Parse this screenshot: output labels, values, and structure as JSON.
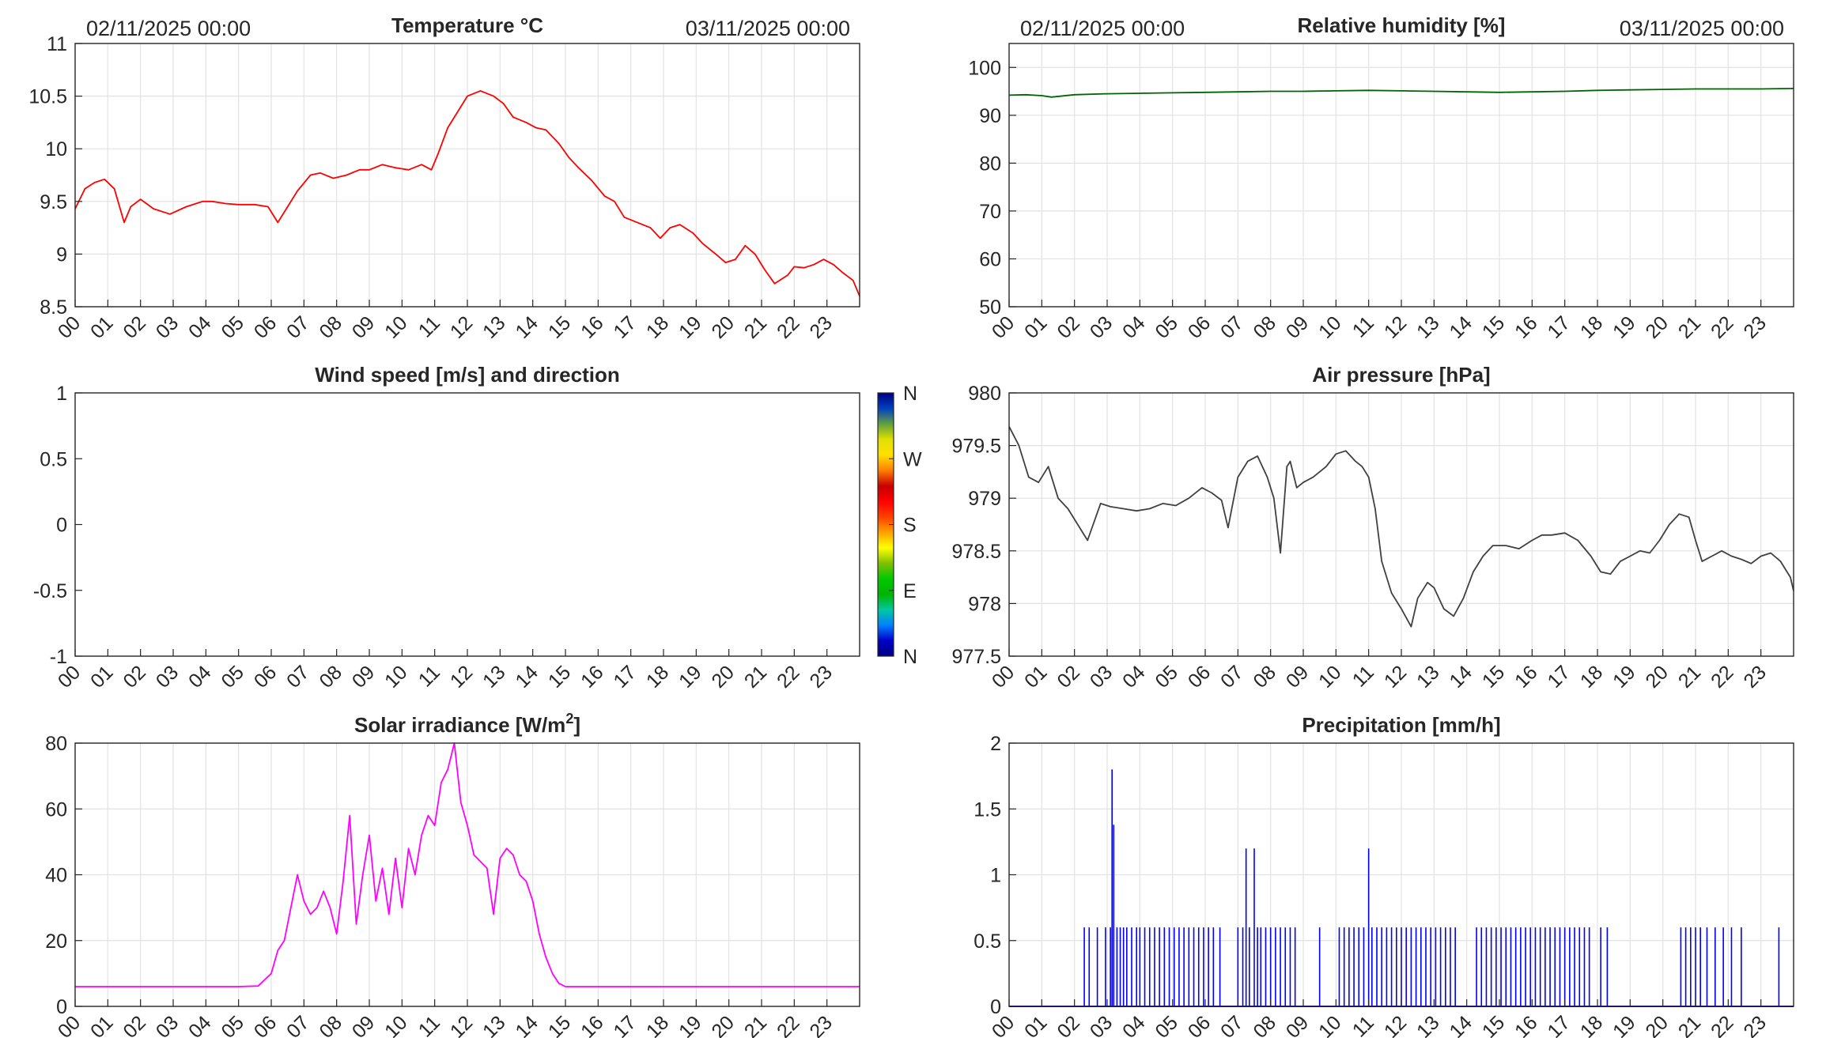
{
  "figure_style": {
    "plot_bg": "#ffffff",
    "axes_color": "#262626",
    "grid_color": "#e2e2e2"
  },
  "chart_data": [
    {
      "id": "temperature",
      "type": "line",
      "title": "Temperature °C",
      "date_start": "02/11/2025 00:00",
      "date_end": "03/11/2025 00:00",
      "xlim": [
        0,
        24
      ],
      "ylim": [
        8.5,
        11
      ],
      "yticks": [
        "8.5",
        "9",
        "9.5",
        "10",
        "10.5",
        "11"
      ],
      "xticks": [
        "00",
        "01",
        "02",
        "03",
        "04",
        "05",
        "06",
        "07",
        "08",
        "09",
        "10",
        "11",
        "12",
        "13",
        "14",
        "15",
        "16",
        "17",
        "18",
        "19",
        "20",
        "21",
        "22",
        "23"
      ],
      "grid": true,
      "series": [
        {
          "color": "#ff0000",
          "x": [
            0,
            0.3,
            0.6,
            0.9,
            1.2,
            1.5,
            1.7,
            2.0,
            2.4,
            2.9,
            3.4,
            3.9,
            4.2,
            4.6,
            5.0,
            5.5,
            5.9,
            6.2,
            6.5,
            6.8,
            7.2,
            7.5,
            7.9,
            8.3,
            8.7,
            9.0,
            9.4,
            9.8,
            10.2,
            10.6,
            10.9,
            11.1,
            11.4,
            11.7,
            12.0,
            12.4,
            12.8,
            13.1,
            13.4,
            13.8,
            14.1,
            14.4,
            14.8,
            15.1,
            15.4,
            15.8,
            16.2,
            16.5,
            16.8,
            17.2,
            17.6,
            17.9,
            18.2,
            18.5,
            18.9,
            19.2,
            19.6,
            19.9,
            20.2,
            20.5,
            20.8,
            21.1,
            21.4,
            21.8,
            22.0,
            22.3,
            22.6,
            22.9,
            23.2,
            23.5,
            23.8,
            24.0
          ],
          "y": [
            9.43,
            9.62,
            9.68,
            9.71,
            9.62,
            9.3,
            9.45,
            9.52,
            9.43,
            9.38,
            9.45,
            9.5,
            9.5,
            9.48,
            9.47,
            9.47,
            9.45,
            9.3,
            9.45,
            9.6,
            9.75,
            9.77,
            9.72,
            9.75,
            9.8,
            9.8,
            9.85,
            9.82,
            9.8,
            9.85,
            9.8,
            9.95,
            10.2,
            10.35,
            10.5,
            10.55,
            10.5,
            10.43,
            10.3,
            10.25,
            10.2,
            10.18,
            10.05,
            9.92,
            9.82,
            9.7,
            9.55,
            9.5,
            9.35,
            9.3,
            9.25,
            9.15,
            9.25,
            9.28,
            9.2,
            9.1,
            9.0,
            8.92,
            8.95,
            9.08,
            9.0,
            8.85,
            8.72,
            8.8,
            8.88,
            8.87,
            8.9,
            8.95,
            8.9,
            8.82,
            8.75,
            8.6
          ]
        }
      ]
    },
    {
      "id": "humidity",
      "type": "line",
      "title": "Relative humidity [%]",
      "date_start": "02/11/2025 00:00",
      "date_end": "03/11/2025 00:00",
      "xlim": [
        0,
        24
      ],
      "ylim": [
        50,
        105
      ],
      "yticks": [
        "50",
        "60",
        "70",
        "80",
        "90",
        "100"
      ],
      "xticks": [
        "00",
        "01",
        "02",
        "03",
        "04",
        "05",
        "06",
        "07",
        "08",
        "09",
        "10",
        "11",
        "12",
        "13",
        "14",
        "15",
        "16",
        "17",
        "18",
        "19",
        "20",
        "21",
        "22",
        "23"
      ],
      "grid": true,
      "series": [
        {
          "color": "#006400",
          "x": [
            0,
            0.5,
            1.0,
            1.3,
            2.0,
            3.0,
            4.0,
            5.0,
            6.0,
            7.0,
            8.0,
            9.0,
            10.0,
            11.0,
            12.0,
            13.0,
            14.0,
            15.0,
            16.0,
            17.0,
            18.0,
            19.0,
            20.0,
            21.0,
            22.0,
            23.0,
            24.0
          ],
          "y": [
            94.2,
            94.3,
            94.1,
            93.8,
            94.3,
            94.5,
            94.6,
            94.7,
            94.8,
            94.9,
            95.0,
            95.0,
            95.1,
            95.2,
            95.1,
            95.0,
            94.9,
            94.8,
            94.9,
            95.0,
            95.2,
            95.3,
            95.4,
            95.5,
            95.5,
            95.5,
            95.6
          ]
        }
      ]
    },
    {
      "id": "wind",
      "type": "scatter",
      "title": "Wind speed [m/s] and direction",
      "xlim": [
        0,
        24
      ],
      "ylim": [
        -1,
        1
      ],
      "yticks": [
        "-1",
        "-0.5",
        "0",
        "0.5",
        "1"
      ],
      "xticks": [
        "00",
        "01",
        "02",
        "03",
        "04",
        "05",
        "06",
        "07",
        "08",
        "09",
        "10",
        "11",
        "12",
        "13",
        "14",
        "15",
        "16",
        "17",
        "18",
        "19",
        "20",
        "21",
        "22",
        "23"
      ],
      "grid": false,
      "series": [],
      "colorbar": {
        "labels": [
          "N",
          "W",
          "S",
          "E",
          "N"
        ],
        "colors": [
          "#000080",
          "#0000c8",
          "#0080ff",
          "#00c8a0",
          "#00b400",
          "#00c800",
          "#80c000",
          "#ffff00",
          "#ffa000",
          "#ff4000",
          "#ff0000",
          "#c80000",
          "#ff8000",
          "#ffe000",
          "#e0e000",
          "#60a040",
          "#0040c0",
          "#000080"
        ]
      }
    },
    {
      "id": "pressure",
      "type": "line",
      "title": "Air pressure [hPa]",
      "xlim": [
        0,
        24
      ],
      "ylim": [
        977.5,
        980
      ],
      "yticks": [
        "977.5",
        "978",
        "978.5",
        "979",
        "979.5",
        "980"
      ],
      "xticks": [
        "00",
        "01",
        "02",
        "03",
        "04",
        "05",
        "06",
        "07",
        "08",
        "09",
        "10",
        "11",
        "12",
        "13",
        "14",
        "15",
        "16",
        "17",
        "18",
        "19",
        "20",
        "21",
        "22",
        "23"
      ],
      "grid": true,
      "series": [
        {
          "color": "#404040",
          "x": [
            0,
            0.3,
            0.6,
            0.9,
            1.2,
            1.5,
            1.8,
            2.1,
            2.4,
            2.8,
            3.1,
            3.5,
            3.9,
            4.3,
            4.7,
            5.1,
            5.5,
            5.9,
            6.2,
            6.5,
            6.7,
            7.0,
            7.3,
            7.6,
            7.9,
            8.1,
            8.3,
            8.5,
            8.6,
            8.8,
            9.0,
            9.3,
            9.7,
            10.0,
            10.3,
            10.6,
            10.8,
            11.0,
            11.2,
            11.4,
            11.7,
            12.0,
            12.3,
            12.5,
            12.8,
            13.0,
            13.3,
            13.6,
            13.9,
            14.2,
            14.5,
            14.8,
            15.2,
            15.6,
            16.0,
            16.3,
            16.6,
            17.0,
            17.4,
            17.8,
            18.1,
            18.4,
            18.7,
            19.0,
            19.3,
            19.6,
            19.9,
            20.2,
            20.5,
            20.8,
            21.0,
            21.2,
            21.5,
            21.8,
            22.1,
            22.4,
            22.7,
            23.0,
            23.3,
            23.6,
            23.9,
            24.0
          ],
          "y": [
            979.68,
            979.5,
            979.2,
            979.15,
            979.3,
            979.0,
            978.9,
            978.75,
            978.6,
            978.95,
            978.92,
            978.9,
            978.88,
            978.9,
            978.95,
            978.93,
            979.0,
            979.1,
            979.05,
            978.98,
            978.72,
            979.2,
            979.35,
            979.4,
            979.2,
            979.0,
            978.48,
            979.3,
            979.35,
            979.1,
            979.15,
            979.2,
            979.3,
            979.42,
            979.45,
            979.35,
            979.3,
            979.2,
            978.9,
            978.4,
            978.1,
            977.95,
            977.78,
            978.05,
            978.2,
            978.15,
            977.95,
            977.88,
            978.05,
            978.3,
            978.45,
            978.55,
            978.55,
            978.52,
            978.6,
            978.65,
            978.65,
            978.67,
            978.6,
            978.45,
            978.3,
            978.28,
            978.4,
            978.45,
            978.5,
            978.48,
            978.6,
            978.75,
            978.85,
            978.82,
            978.6,
            978.4,
            978.45,
            978.5,
            978.45,
            978.42,
            978.38,
            978.45,
            978.48,
            978.4,
            978.25,
            978.12
          ]
        }
      ]
    },
    {
      "id": "solar",
      "type": "line",
      "title": "Solar irradiance [W/m",
      "title_sup": "2",
      "title_end": "]",
      "xlim": [
        0,
        24
      ],
      "ylim": [
        0,
        80
      ],
      "yticks": [
        "0",
        "20",
        "40",
        "60",
        "80"
      ],
      "xticks": [
        "00",
        "01",
        "02",
        "03",
        "04",
        "05",
        "06",
        "07",
        "08",
        "09",
        "10",
        "11",
        "12",
        "13",
        "14",
        "15",
        "16",
        "17",
        "18",
        "19",
        "20",
        "21",
        "22",
        "23"
      ],
      "grid": true,
      "series": [
        {
          "color": "#ff00ff",
          "x": [
            0,
            1,
            2,
            3,
            4,
            5,
            5.6,
            6.0,
            6.2,
            6.4,
            6.6,
            6.8,
            7.0,
            7.2,
            7.4,
            7.6,
            7.8,
            8.0,
            8.2,
            8.4,
            8.6,
            8.8,
            9.0,
            9.2,
            9.4,
            9.6,
            9.8,
            10.0,
            10.2,
            10.4,
            10.6,
            10.8,
            11.0,
            11.2,
            11.4,
            11.6,
            11.8,
            12.0,
            12.2,
            12.4,
            12.6,
            12.8,
            13.0,
            13.2,
            13.4,
            13.6,
            13.8,
            14.0,
            14.2,
            14.4,
            14.6,
            14.8,
            15.0,
            15.3,
            15.6,
            16.0,
            17,
            18,
            19,
            20,
            21,
            22,
            23,
            24
          ],
          "y": [
            6,
            6,
            6,
            6,
            6,
            6,
            6.2,
            10,
            17,
            20,
            30,
            40,
            32,
            28,
            30,
            35,
            30,
            22,
            38,
            58,
            25,
            40,
            52,
            32,
            42,
            28,
            45,
            30,
            48,
            40,
            52,
            58,
            55,
            68,
            72,
            80,
            62,
            55,
            46,
            44,
            42,
            28,
            45,
            48,
            46,
            40,
            38,
            32,
            22,
            15,
            10,
            7,
            6,
            6,
            6,
            6,
            6,
            6,
            6,
            6,
            6,
            6,
            6,
            6
          ]
        }
      ]
    },
    {
      "id": "precipitation",
      "type": "bar",
      "title": "Precipitation [mm/h]",
      "xlim": [
        0,
        24
      ],
      "ylim": [
        0,
        2
      ],
      "yticks": [
        "0",
        "0.5",
        "1",
        "1.5",
        "2"
      ],
      "xticks": [
        "00",
        "01",
        "02",
        "03",
        "04",
        "05",
        "06",
        "07",
        "08",
        "09",
        "10",
        "11",
        "12",
        "13",
        "14",
        "15",
        "16",
        "17",
        "18",
        "19",
        "20",
        "21",
        "22",
        "23"
      ],
      "grid": true,
      "series": [
        {
          "color": "#0000ff",
          "x": [
            2.3,
            2.45,
            2.7,
            2.95,
            3.1,
            3.15,
            3.2,
            3.3,
            3.4,
            3.5,
            3.6,
            3.75,
            3.9,
            4.0,
            4.15,
            4.3,
            4.45,
            4.6,
            4.75,
            4.9,
            5.05,
            5.2,
            5.35,
            5.5,
            5.65,
            5.8,
            5.95,
            6.1,
            6.25,
            6.45,
            7.0,
            7.15,
            7.25,
            7.35,
            7.5,
            7.6,
            7.7,
            7.85,
            8.0,
            8.15,
            8.3,
            8.45,
            8.6,
            8.75,
            9.5,
            10.1,
            10.25,
            10.4,
            10.55,
            10.7,
            10.85,
            11.0,
            11.1,
            11.25,
            11.4,
            11.55,
            11.7,
            11.85,
            12.0,
            12.15,
            12.3,
            12.45,
            12.6,
            12.75,
            12.9,
            13.05,
            13.2,
            13.35,
            13.5,
            13.65,
            14.3,
            14.45,
            14.6,
            14.75,
            14.9,
            15.05,
            15.2,
            15.35,
            15.5,
            15.65,
            15.8,
            15.95,
            16.1,
            16.25,
            16.4,
            16.55,
            16.7,
            16.85,
            17.0,
            17.15,
            17.3,
            17.45,
            17.6,
            17.75,
            18.1,
            18.3,
            20.55,
            20.7,
            20.85,
            21.0,
            21.15,
            21.35,
            21.6,
            21.85,
            22.1,
            22.4,
            23.55
          ],
          "y": [
            0.6,
            0.6,
            0.6,
            0.6,
            0.6,
            1.8,
            1.38,
            0.6,
            0.6,
            0.6,
            0.6,
            0.6,
            0.6,
            0.6,
            0.6,
            0.6,
            0.6,
            0.6,
            0.6,
            0.6,
            0.6,
            0.6,
            0.6,
            0.6,
            0.6,
            0.6,
            0.6,
            0.6,
            0.6,
            0.6,
            0.6,
            0.6,
            1.2,
            0.6,
            1.2,
            0.6,
            0.6,
            0.6,
            0.6,
            0.6,
            0.6,
            0.6,
            0.6,
            0.6,
            0.6,
            0.6,
            0.6,
            0.6,
            0.6,
            0.6,
            0.6,
            1.2,
            0.6,
            0.6,
            0.6,
            0.6,
            0.6,
            0.6,
            0.6,
            0.6,
            0.6,
            0.6,
            0.6,
            0.6,
            0.6,
            0.6,
            0.6,
            0.6,
            0.6,
            0.6,
            0.6,
            0.6,
            0.6,
            0.6,
            0.6,
            0.6,
            0.6,
            0.6,
            0.6,
            0.6,
            0.6,
            0.6,
            0.6,
            0.6,
            0.6,
            0.6,
            0.6,
            0.6,
            0.6,
            0.6,
            0.6,
            0.6,
            0.6,
            0.6,
            0.6,
            0.6,
            0.6,
            0.6,
            0.6,
            0.6,
            0.6,
            0.6,
            0.6,
            0.6,
            0.6,
            0.6,
            0.6
          ]
        }
      ]
    }
  ]
}
